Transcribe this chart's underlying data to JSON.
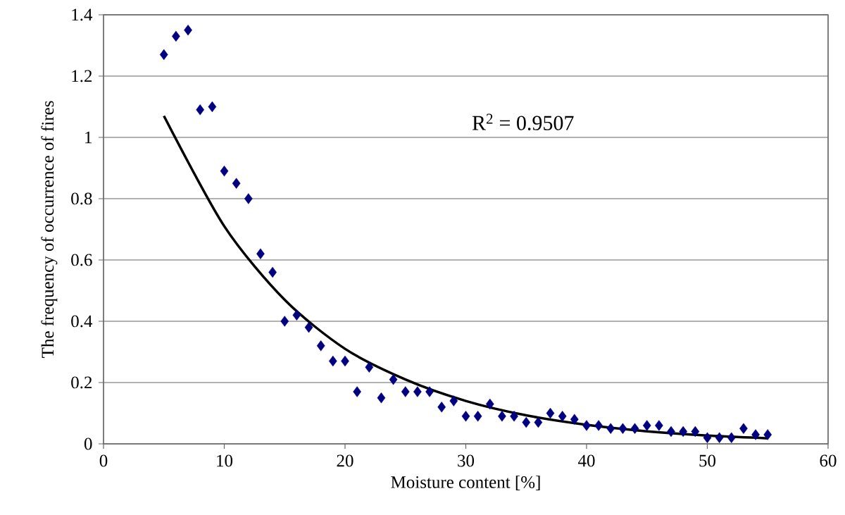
{
  "chart_data": {
    "type": "scatter",
    "xlabel": "Moisture content [%]",
    "ylabel": "The frequency of occurrence of fires",
    "xlim": [
      0,
      60
    ],
    "xticks": [
      0,
      10,
      20,
      30,
      40,
      50,
      60
    ],
    "ylim": [
      0,
      1.4
    ],
    "yticks": [
      0,
      0.2,
      0.4,
      0.6,
      0.8,
      1,
      1.2,
      1.4
    ],
    "grid": "y",
    "marker": "diamond",
    "annotations": [
      "R$^{2}$ = 0.9507"
    ],
    "series": [
      {
        "color": "#000080",
        "x": [
          5,
          6,
          7,
          8,
          9,
          10,
          11,
          12,
          13,
          14,
          15,
          16,
          17,
          18,
          19,
          20,
          21,
          22,
          23,
          24,
          25,
          26,
          27,
          28,
          29,
          30,
          31,
          32,
          33,
          34,
          35,
          36,
          37,
          38,
          39,
          40,
          41,
          42,
          43,
          44,
          45,
          46,
          47,
          48,
          49,
          50,
          51,
          52,
          53,
          54,
          55
        ],
        "values": [
          1.27,
          1.33,
          1.35,
          1.09,
          1.1,
          0.89,
          0.85,
          0.8,
          0.62,
          0.56,
          0.4,
          0.42,
          0.38,
          0.32,
          0.27,
          0.27,
          0.17,
          0.25,
          0.15,
          0.21,
          0.17,
          0.17,
          0.17,
          0.12,
          0.14,
          0.09,
          0.09,
          0.13,
          0.09,
          0.09,
          0.07,
          0.07,
          0.1,
          0.09,
          0.08,
          0.06,
          0.06,
          0.05,
          0.05,
          0.05,
          0.06,
          0.06,
          0.04,
          0.04,
          0.04,
          0.02,
          0.02,
          0.02,
          0.05,
          0.03,
          0.03
        ]
      },
      {
        "type": "line",
        "color": "#000000",
        "marker": "none",
        "line_style": "solid",
        "x": [
          5,
          10,
          15,
          20,
          25,
          30,
          35,
          40,
          45,
          50,
          55
        ],
        "values": [
          1.07,
          0.71,
          0.47,
          0.31,
          0.21,
          0.14,
          0.093,
          0.062,
          0.041,
          0.027,
          0.018
        ]
      }
    ]
  }
}
